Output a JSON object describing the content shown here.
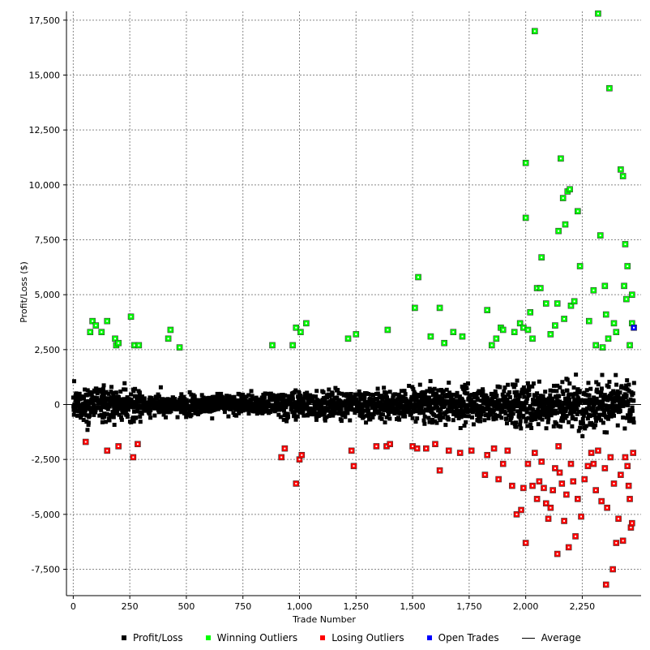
{
  "chart_data": {
    "type": "scatter",
    "title": "",
    "xlabel": "Trade Number",
    "ylabel": "Profit/Loss ($)",
    "xlim": [
      -30,
      2510
    ],
    "ylim": [
      -8700,
      17900
    ],
    "x_ticks": [
      0,
      250,
      500,
      750,
      1000,
      1250,
      1500,
      1750,
      2000,
      2250
    ],
    "x_tick_labels": [
      "0",
      "250",
      "500",
      "750",
      "1,000",
      "1,250",
      "1,500",
      "1,750",
      "2,000",
      "2,250"
    ],
    "y_ticks": [
      -7500,
      -5000,
      -2500,
      0,
      2500,
      5000,
      7500,
      10000,
      12500,
      15000,
      17500
    ],
    "y_tick_labels": [
      "-7,500",
      "-5,000",
      "-2,500",
      "0",
      "2,500",
      "5,000",
      "7,500",
      "10,000",
      "12,500",
      "15,000",
      "17,500"
    ],
    "grid": true,
    "legend_position": "bottom",
    "colors": {
      "profit_loss": "#000000",
      "winning_outliers": "#00ff00",
      "losing_outliers": "#ff0000",
      "open_trades": "#0000ff",
      "average": "#000000"
    },
    "series": [
      {
        "name": "Winning Outliers",
        "points": [
          [
            75,
            3300
          ],
          [
            85,
            3800
          ],
          [
            100,
            3600
          ],
          [
            125,
            3300
          ],
          [
            150,
            3800
          ],
          [
            185,
            3000
          ],
          [
            190,
            2700
          ],
          [
            200,
            2800
          ],
          [
            255,
            4000
          ],
          [
            270,
            2700
          ],
          [
            290,
            2700
          ],
          [
            420,
            3000
          ],
          [
            430,
            3400
          ],
          [
            470,
            2600
          ],
          [
            880,
            2700
          ],
          [
            970,
            2700
          ],
          [
            985,
            3500
          ],
          [
            1005,
            3300
          ],
          [
            1030,
            3700
          ],
          [
            1215,
            3000
          ],
          [
            1250,
            3200
          ],
          [
            1390,
            3400
          ],
          [
            1510,
            4400
          ],
          [
            1525,
            5800
          ],
          [
            1580,
            3100
          ],
          [
            1620,
            4400
          ],
          [
            1640,
            2800
          ],
          [
            1680,
            3300
          ],
          [
            1720,
            3100
          ],
          [
            1830,
            4300
          ],
          [
            1850,
            2700
          ],
          [
            1870,
            3000
          ],
          [
            1890,
            3500
          ],
          [
            1900,
            3400
          ],
          [
            1950,
            3300
          ],
          [
            1975,
            3700
          ],
          [
            1990,
            3500
          ],
          [
            2000,
            8500
          ],
          [
            2000,
            11000
          ],
          [
            2010,
            3400
          ],
          [
            2020,
            4200
          ],
          [
            2030,
            3000
          ],
          [
            2040,
            17000
          ],
          [
            2050,
            5300
          ],
          [
            2065,
            5300
          ],
          [
            2070,
            6700
          ],
          [
            2090,
            4600
          ],
          [
            2110,
            3200
          ],
          [
            2130,
            3600
          ],
          [
            2140,
            4600
          ],
          [
            2145,
            7900
          ],
          [
            2155,
            11200
          ],
          [
            2165,
            9400
          ],
          [
            2170,
            3900
          ],
          [
            2175,
            8200
          ],
          [
            2185,
            9700
          ],
          [
            2195,
            9800
          ],
          [
            2200,
            4500
          ],
          [
            2215,
            4700
          ],
          [
            2230,
            8800
          ],
          [
            2240,
            6300
          ],
          [
            2280,
            3800
          ],
          [
            2300,
            5200
          ],
          [
            2310,
            2700
          ],
          [
            2320,
            17800
          ],
          [
            2330,
            7700
          ],
          [
            2340,
            2600
          ],
          [
            2350,
            5400
          ],
          [
            2355,
            4100
          ],
          [
            2365,
            3000
          ],
          [
            2370,
            14400
          ],
          [
            2390,
            3700
          ],
          [
            2400,
            3300
          ],
          [
            2420,
            10700
          ],
          [
            2430,
            10400
          ],
          [
            2435,
            5400
          ],
          [
            2440,
            7300
          ],
          [
            2445,
            4800
          ],
          [
            2450,
            6300
          ],
          [
            2460,
            2700
          ],
          [
            2470,
            3700
          ],
          [
            2470,
            5000
          ]
        ]
      },
      {
        "name": "Losing Outliers",
        "points": [
          [
            55,
            -1700
          ],
          [
            150,
            -2100
          ],
          [
            200,
            -1900
          ],
          [
            265,
            -2400
          ],
          [
            285,
            -1800
          ],
          [
            920,
            -2400
          ],
          [
            935,
            -2000
          ],
          [
            985,
            -3600
          ],
          [
            1000,
            -2500
          ],
          [
            1010,
            -2300
          ],
          [
            1230,
            -2100
          ],
          [
            1240,
            -2800
          ],
          [
            1340,
            -1900
          ],
          [
            1385,
            -1900
          ],
          [
            1400,
            -1800
          ],
          [
            1500,
            -1900
          ],
          [
            1520,
            -2000
          ],
          [
            1560,
            -2000
          ],
          [
            1600,
            -1800
          ],
          [
            1620,
            -3000
          ],
          [
            1660,
            -2100
          ],
          [
            1710,
            -2200
          ],
          [
            1760,
            -2100
          ],
          [
            1820,
            -3200
          ],
          [
            1830,
            -2300
          ],
          [
            1860,
            -2000
          ],
          [
            1880,
            -3400
          ],
          [
            1900,
            -2700
          ],
          [
            1920,
            -2100
          ],
          [
            1940,
            -3700
          ],
          [
            1960,
            -5000
          ],
          [
            1980,
            -4800
          ],
          [
            1990,
            -3800
          ],
          [
            2000,
            -6300
          ],
          [
            2010,
            -2700
          ],
          [
            2030,
            -3700
          ],
          [
            2040,
            -2200
          ],
          [
            2050,
            -4300
          ],
          [
            2060,
            -3500
          ],
          [
            2070,
            -2600
          ],
          [
            2080,
            -3800
          ],
          [
            2090,
            -4500
          ],
          [
            2100,
            -5200
          ],
          [
            2110,
            -4700
          ],
          [
            2120,
            -3900
          ],
          [
            2130,
            -2900
          ],
          [
            2140,
            -6800
          ],
          [
            2145,
            -1900
          ],
          [
            2150,
            -3100
          ],
          [
            2160,
            -3600
          ],
          [
            2170,
            -5300
          ],
          [
            2180,
            -4100
          ],
          [
            2190,
            -6500
          ],
          [
            2200,
            -2700
          ],
          [
            2210,
            -3500
          ],
          [
            2220,
            -6000
          ],
          [
            2230,
            -4300
          ],
          [
            2245,
            -5100
          ],
          [
            2260,
            -3400
          ],
          [
            2275,
            -2800
          ],
          [
            2290,
            -2200
          ],
          [
            2300,
            -2700
          ],
          [
            2310,
            -3900
          ],
          [
            2320,
            -2100
          ],
          [
            2335,
            -4400
          ],
          [
            2350,
            -2900
          ],
          [
            2355,
            -8200
          ],
          [
            2360,
            -4700
          ],
          [
            2375,
            -2400
          ],
          [
            2385,
            -7500
          ],
          [
            2390,
            -3600
          ],
          [
            2400,
            -6300
          ],
          [
            2410,
            -5200
          ],
          [
            2420,
            -3200
          ],
          [
            2430,
            -6200
          ],
          [
            2440,
            -2400
          ],
          [
            2450,
            -2800
          ],
          [
            2455,
            -3700
          ],
          [
            2460,
            -4300
          ],
          [
            2465,
            -5600
          ],
          [
            2470,
            -5400
          ],
          [
            2475,
            -2200
          ]
        ]
      },
      {
        "name": "Open Trades",
        "points": [
          [
            2478,
            3500
          ]
        ]
      },
      {
        "name": "Profit/Loss",
        "generation": {
          "count": 2480,
          "segments": [
            {
              "x_from": 0,
              "x_to": 300,
              "sigma": 700
            },
            {
              "x_from": 300,
              "x_to": 900,
              "sigma": 420
            },
            {
              "x_from": 900,
              "x_to": 1500,
              "sigma": 600
            },
            {
              "x_from": 1500,
              "x_to": 1900,
              "sigma": 750
            },
            {
              "x_from": 1900,
              "x_to": 2480,
              "sigma": 1000
            }
          ],
          "clip": [
            -1900,
            2400
          ]
        }
      },
      {
        "name": "Average",
        "y": 0
      }
    ]
  },
  "legend": {
    "profit_loss": "Profit/Loss",
    "winning_outliers": "Winning Outliers",
    "losing_outliers": "Losing Outliers",
    "open_trades": "Open Trades",
    "average": "Average"
  }
}
